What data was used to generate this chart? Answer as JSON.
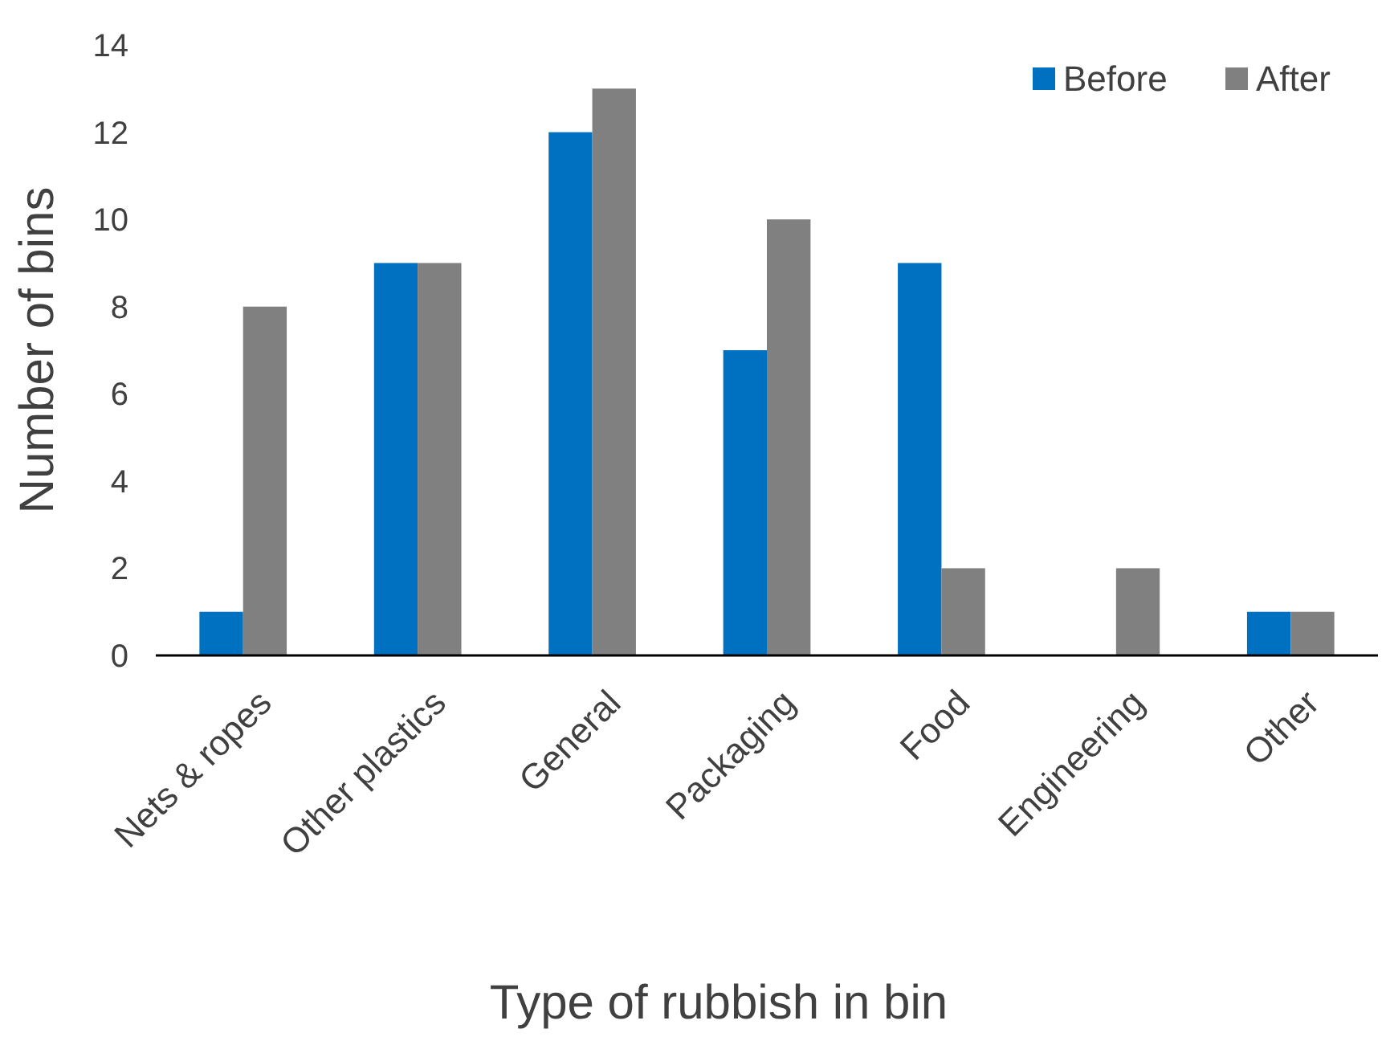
{
  "chart_data": {
    "type": "bar",
    "xlabel": "Type of rubbish in bin",
    "ylabel": "Number of bins",
    "categories": [
      "Nets & ropes",
      "Other plastics",
      "General",
      "Packaging",
      "Food",
      "Engineering",
      "Other"
    ],
    "series": [
      {
        "name": "Before",
        "color": "#0070c0",
        "values": [
          1,
          9,
          12,
          7,
          9,
          0,
          1
        ]
      },
      {
        "name": "After",
        "color": "#808080",
        "values": [
          8,
          9,
          13,
          10,
          2,
          2,
          1
        ]
      }
    ],
    "ylim": [
      0,
      14
    ],
    "yticks": [
      0,
      2,
      4,
      6,
      8,
      10,
      12,
      14
    ],
    "grid": false,
    "legend": "top right"
  }
}
